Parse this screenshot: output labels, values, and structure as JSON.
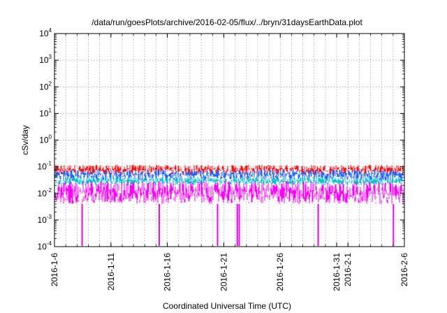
{
  "chart_data": {
    "type": "line",
    "title": "/data/run/goesPlots/archive/2016-02-05/flux/../bryn/31daysEarthData.plot",
    "xlabel": "Coordinated Universal Time (UTC)",
    "ylabel": "cSv/day",
    "yscale": "log",
    "ylim": [
      0.0001,
      10000
    ],
    "xlim": [
      "2016-01-06",
      "2016-02-06"
    ],
    "grid": true,
    "y_ticks": [
      {
        "base": "10",
        "exp": "-4",
        "value": 0.0001
      },
      {
        "base": "10",
        "exp": "-3",
        "value": 0.001
      },
      {
        "base": "10",
        "exp": "-2",
        "value": 0.01
      },
      {
        "base": "10",
        "exp": "-1",
        "value": 0.1
      },
      {
        "base": "10",
        "exp": "0",
        "value": 1
      },
      {
        "base": "10",
        "exp": "1",
        "value": 10
      },
      {
        "base": "10",
        "exp": "2",
        "value": 100
      },
      {
        "base": "10",
        "exp": "3",
        "value": 1000
      },
      {
        "base": "10",
        "exp": "4",
        "value": 10000
      }
    ],
    "x_ticks": [
      {
        "label": "2016-1-6",
        "date": "2016-01-06"
      },
      {
        "label": "2016-1-11",
        "date": "2016-01-11"
      },
      {
        "label": "2016-1-16",
        "date": "2016-01-16"
      },
      {
        "label": "2016-1-21",
        "date": "2016-01-21"
      },
      {
        "label": "2016-1-26",
        "date": "2016-01-26"
      },
      {
        "label": "2016-1-31",
        "date": "2016-01-31"
      },
      {
        "label": "2016-2-1",
        "date": "2016-02-01"
      },
      {
        "label": "2016-2-6",
        "date": "2016-02-06"
      }
    ],
    "series": [
      {
        "color": "#ff1010",
        "min": 0.05,
        "max": 0.12
      },
      {
        "color": "#1e64ff",
        "min": 0.03,
        "max": 0.08
      },
      {
        "color": "#00c8c8",
        "min": 0.02,
        "max": 0.04
      },
      {
        "color": "#ff00ff",
        "min": 0.004,
        "max": 0.03,
        "dropouts": [
          "2016-01-08T10:00",
          "2016-01-15T06:00",
          "2016-01-20T10:00",
          "2016-01-22T04:00",
          "2016-01-22T08:00",
          "2016-01-29T08:00",
          "2016-02-05T00:00"
        ]
      }
    ]
  }
}
